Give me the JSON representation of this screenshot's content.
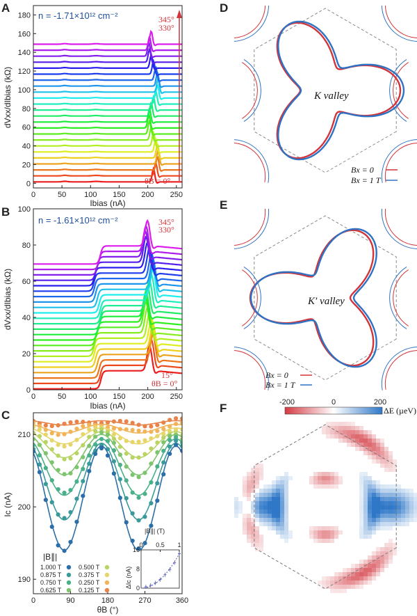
{
  "panels": {
    "A": {
      "letter": "A",
      "density": "n = -1.71×10¹² cm⁻²",
      "angle_top": "345°",
      "angle_second": "330°",
      "angle_bottom": "θB = 0°",
      "ylabel": "dVxx/dIbias (kΩ)",
      "xlabel": "Ibias (nA)"
    },
    "B": {
      "letter": "B",
      "density": "n = -1.61×10¹² cm⁻²",
      "angle_top": "345°",
      "angle_second": "330°",
      "angle_bottom_2": "15°",
      "angle_bottom": "θB = 0°",
      "ylabel": "dVxx/dIbias (kΩ)",
      "xlabel": "Ibias (nA)"
    },
    "C": {
      "letter": "C",
      "ylabel": "Ic (nA)",
      "xlabel": "θB (°)",
      "legend_title": "|B∥|",
      "legend": [
        "1.000 T",
        "0.875 T",
        "0.750 T",
        "0.625 T",
        "0.500 T",
        "0.375 T",
        "0.250 T",
        "0.125 T"
      ],
      "inset_xlabel": "|B∥| (T)",
      "inset_ylabel": "ΔIc (nA)"
    },
    "D": {
      "letter": "D",
      "valley": "K valley",
      "legend": [
        "Bx = 0",
        "Bx = 1 T"
      ]
    },
    "E": {
      "letter": "E",
      "valley": "K′ valley",
      "legend": [
        "Bx = 0",
        "Bx = 1 T"
      ]
    },
    "F": {
      "letter": "F",
      "colorbar_label": "ΔE (µeV)",
      "colorbar_ticks": [
        "-200",
        "0",
        "200"
      ]
    }
  },
  "colors": {
    "red": "#d1343a",
    "blue": "#2f72c4",
    "density_text": "#1f4e9a"
  },
  "chart_data": [
    {
      "panel": "A",
      "type": "line",
      "title": "n = -1.71×10¹² cm⁻²",
      "xlabel": "Ibias (nA)",
      "ylabel": "dVxx/dIbias (kΩ)",
      "xlim": [
        0,
        260
      ],
      "ylim": [
        -5,
        190
      ],
      "xticks": [
        0,
        50,
        100,
        150,
        200,
        250
      ],
      "yticks": [
        0,
        20,
        40,
        60,
        80,
        100,
        120,
        140,
        160,
        180
      ],
      "series_description": "24 traces, θB = 0° to 345° in 15° steps, each offset by ~6.4 kΩ; baseline ~1.5 kΩ, sharp peak near Ibias ≈ 205–218 nA",
      "angles_deg": [
        0,
        15,
        30,
        45,
        60,
        75,
        90,
        105,
        120,
        135,
        150,
        165,
        180,
        195,
        210,
        225,
        240,
        255,
        270,
        285,
        300,
        315,
        330,
        345
      ],
      "offset_step": 6.4,
      "baseline": 1.5,
      "peak_center_nA": 210,
      "peak_height": 14
    },
    {
      "panel": "B",
      "type": "line",
      "title": "n = -1.61×10¹² cm⁻²",
      "xlabel": "Ibias (nA)",
      "ylabel": "dVxx/dIbias (kΩ)",
      "xlim": [
        0,
        260
      ],
      "ylim": [
        0,
        100
      ],
      "xticks": [
        0,
        50,
        100,
        150,
        200,
        250
      ],
      "yticks": [
        0,
        20,
        40,
        60,
        80,
        100
      ],
      "series_description": "24 traces, θB = 0° to 345° in 15° steps, each offset by ~3 kΩ; step near 105–120 nA and peak near 195–210 nA",
      "angles_deg": [
        0,
        15,
        30,
        45,
        60,
        75,
        90,
        105,
        120,
        135,
        150,
        165,
        180,
        195,
        210,
        225,
        240,
        255,
        270,
        285,
        300,
        315,
        330,
        345
      ],
      "offset_step": 3.0
    },
    {
      "panel": "C",
      "type": "scatter",
      "xlabel": "θB (°)",
      "ylabel": "Ic (nA)",
      "xlim": [
        0,
        360
      ],
      "ylim": [
        188,
        213
      ],
      "xticks": [
        0,
        90,
        180,
        270,
        360
      ],
      "yticks": [
        190,
        200,
        210
      ],
      "series": [
        {
          "name": "1.000 T",
          "B": 1.0,
          "mean": 201.2,
          "amp": 7.2,
          "color": "#2c6ea7"
        },
        {
          "name": "0.875 T",
          "B": 0.875,
          "mean": 203.5,
          "amp": 5.3,
          "color": "#3a9a9a"
        },
        {
          "name": "0.750 T",
          "B": 0.75,
          "mean": 205.5,
          "amp": 3.9,
          "color": "#4ab08a"
        },
        {
          "name": "0.625 T",
          "B": 0.625,
          "mean": 207.2,
          "amp": 2.8,
          "color": "#7ec46e"
        },
        {
          "name": "0.500 T",
          "B": 0.5,
          "mean": 208.6,
          "amp": 1.8,
          "color": "#b9d465"
        },
        {
          "name": "0.375 T",
          "B": 0.375,
          "mean": 209.8,
          "amp": 1.1,
          "color": "#e6d66a"
        },
        {
          "name": "0.250 T",
          "B": 0.25,
          "mean": 210.8,
          "amp": 0.6,
          "color": "#f2b45a"
        },
        {
          "name": "0.125 T",
          "B": 0.125,
          "mean": 211.6,
          "amp": 0.3,
          "color": "#e8834a"
        }
      ],
      "angles_deg": [
        0,
        15,
        30,
        45,
        60,
        75,
        90,
        105,
        120,
        135,
        150,
        165,
        180,
        195,
        210,
        225,
        240,
        255,
        270,
        285,
        300,
        315,
        330,
        345,
        360
      ]
    },
    {
      "panel": "C-inset",
      "type": "scatter",
      "xlabel": "|B∥| (T)",
      "ylabel": "ΔIc (nA)",
      "xlim": [
        0,
        1
      ],
      "ylim": [
        0,
        16
      ],
      "xticks": [
        0,
        0.5,
        1
      ],
      "yticks": [
        0,
        8,
        16
      ],
      "x": [
        0.125,
        0.25,
        0.375,
        0.5,
        0.625,
        0.75,
        0.875,
        1.0
      ],
      "y": [
        0.6,
        1.2,
        2.2,
        3.6,
        5.6,
        7.8,
        10.6,
        14.4
      ]
    },
    {
      "panel": "F",
      "type": "heatmap",
      "colorbar_label": "ΔE (µeV)",
      "colorbar_range": [
        -200,
        200
      ],
      "colorbar_ticks": [
        -200,
        0,
        200
      ]
    }
  ]
}
